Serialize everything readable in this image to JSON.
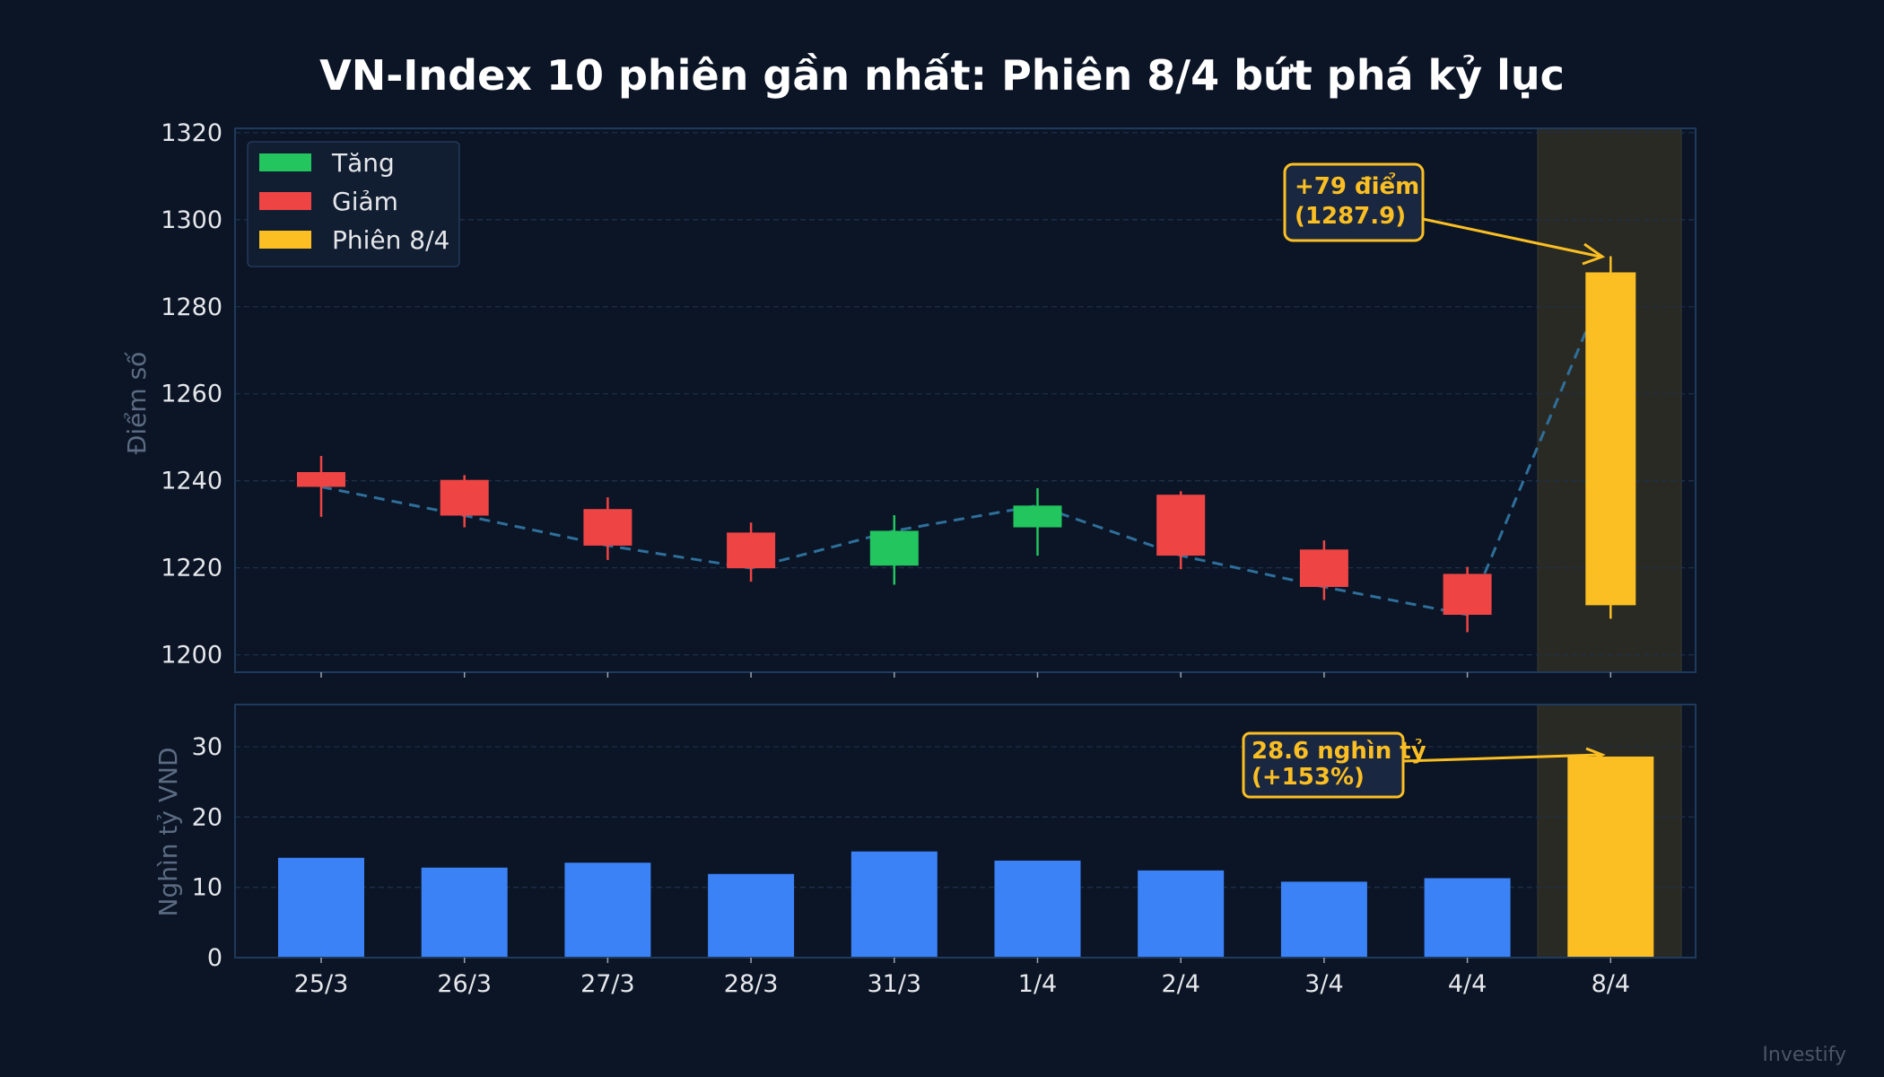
{
  "title": "VN-Index 10 phiên gần nhất: Phiên 8/4 bứt phá kỷ lục",
  "watermark": "Investify",
  "colors": {
    "background": "#0b1526",
    "up": "#22c55e",
    "down": "#ef4444",
    "highlight": "#fbbf24",
    "volume": "#3b82f6",
    "close_line": "#2f6f9a"
  },
  "chart_data": [
    {
      "type": "candlestick",
      "ylabel": "Điểm số",
      "ylim": [
        1196,
        1321
      ],
      "yticks": [
        1200,
        1220,
        1240,
        1260,
        1280,
        1300,
        1320
      ],
      "grid": true,
      "legend_placement": "top-left",
      "legend": [
        {
          "label": "Tăng",
          "color": "#22c55e"
        },
        {
          "label": "Giảm",
          "color": "#ef4444"
        },
        {
          "label": "Phiên 8/4",
          "color": "#fbbf24"
        }
      ],
      "categories": [
        "25/3",
        "26/3",
        "27/3",
        "28/3",
        "31/3",
        "1/4",
        "2/4",
        "3/4",
        "4/4",
        "8/4"
      ],
      "open": [
        1242.0,
        1240.2,
        1233.5,
        1228.1,
        1220.5,
        1229.3,
        1236.8,
        1224.2,
        1218.6,
        1211.4
      ],
      "high": [
        1245.7,
        1241.3,
        1236.2,
        1230.4,
        1232.1,
        1238.3,
        1237.6,
        1226.3,
        1220.2,
        1291.6
      ],
      "low": [
        1231.7,
        1229.3,
        1221.8,
        1216.8,
        1216.1,
        1222.8,
        1219.7,
        1212.6,
        1205.2,
        1208.3
      ],
      "close": [
        1238.6,
        1232.0,
        1225.1,
        1219.9,
        1228.5,
        1234.3,
        1222.8,
        1215.6,
        1209.2,
        1287.9
      ],
      "highlight_category": "8/4",
      "annotation": {
        "line1": "+79 điểm",
        "line2": "(1287.9)"
      }
    },
    {
      "type": "bar",
      "ylabel": "Nghìn tỷ VND",
      "ylim": [
        0,
        36
      ],
      "yticks": [
        0,
        10,
        20,
        30
      ],
      "grid": true,
      "categories": [
        "25/3",
        "26/3",
        "27/3",
        "28/3",
        "31/3",
        "1/4",
        "2/4",
        "3/4",
        "4/4",
        "8/4"
      ],
      "values": [
        14.2,
        12.8,
        13.5,
        11.9,
        15.1,
        13.8,
        12.4,
        10.8,
        11.3,
        28.6
      ],
      "highlight_category": "8/4",
      "annotation": {
        "line1": "28.6 nghìn tỷ",
        "line2": "(+153%)"
      }
    }
  ]
}
